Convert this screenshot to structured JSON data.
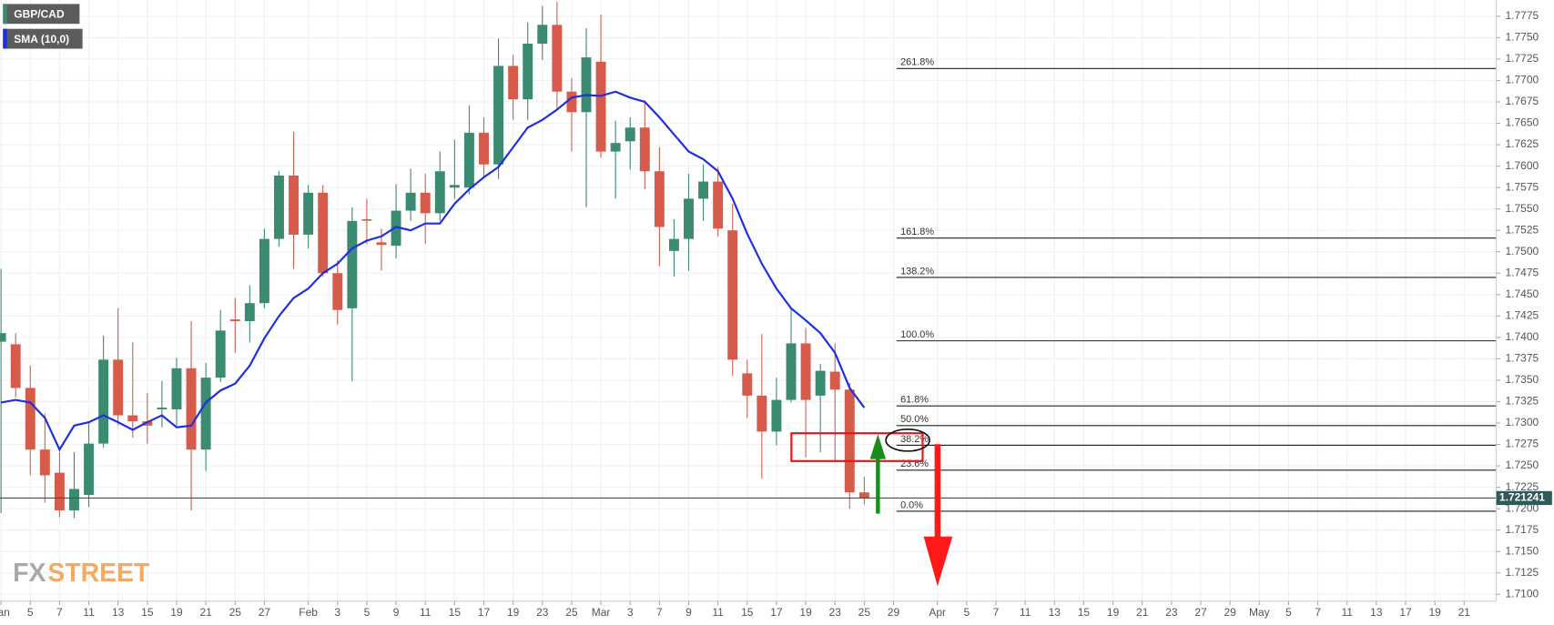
{
  "chart_data": {
    "type": "candlestick",
    "xlim": [
      -0.07,
      102.2
    ],
    "ylim": [
      1.7092,
      1.7794
    ],
    "grid": true,
    "xticks": [
      {
        "value": 0,
        "label": "Jan"
      },
      {
        "value": 2,
        "label": "5"
      },
      {
        "value": 4,
        "label": "7"
      },
      {
        "value": 6,
        "label": "11"
      },
      {
        "value": 8,
        "label": "13"
      },
      {
        "value": 10,
        "label": "15"
      },
      {
        "value": 12,
        "label": "19"
      },
      {
        "value": 14,
        "label": "21"
      },
      {
        "value": 16,
        "label": "25"
      },
      {
        "value": 18,
        "label": "27"
      },
      {
        "value": 21,
        "label": "Feb"
      },
      {
        "value": 23,
        "label": "3"
      },
      {
        "value": 25,
        "label": "5"
      },
      {
        "value": 27,
        "label": "9"
      },
      {
        "value": 29,
        "label": "11"
      },
      {
        "value": 31,
        "label": "15"
      },
      {
        "value": 33,
        "label": "17"
      },
      {
        "value": 35,
        "label": "19"
      },
      {
        "value": 37,
        "label": "23"
      },
      {
        "value": 39,
        "label": "25"
      },
      {
        "value": 41,
        "label": "Mar"
      },
      {
        "value": 43,
        "label": "3"
      },
      {
        "value": 45,
        "label": "7"
      },
      {
        "value": 47,
        "label": "9"
      },
      {
        "value": 49,
        "label": "11"
      },
      {
        "value": 51,
        "label": "15"
      },
      {
        "value": 53,
        "label": "17"
      },
      {
        "value": 55,
        "label": "19"
      },
      {
        "value": 57,
        "label": "23"
      },
      {
        "value": 59,
        "label": "25"
      },
      {
        "value": 61,
        "label": "29"
      },
      {
        "value": 64,
        "label": "Apr"
      },
      {
        "value": 66,
        "label": "5"
      },
      {
        "value": 68,
        "label": "7"
      },
      {
        "value": 70,
        "label": "11"
      },
      {
        "value": 72,
        "label": "13"
      },
      {
        "value": 74,
        "label": "15"
      },
      {
        "value": 76,
        "label": "19"
      },
      {
        "value": 78,
        "label": "21"
      },
      {
        "value": 80,
        "label": "23"
      },
      {
        "value": 82,
        "label": "27"
      },
      {
        "value": 84,
        "label": "29"
      },
      {
        "value": 86,
        "label": "May"
      },
      {
        "value": 88,
        "label": "5"
      },
      {
        "value": 90,
        "label": "7"
      },
      {
        "value": 92,
        "label": "11"
      },
      {
        "value": 94,
        "label": "13"
      },
      {
        "value": 96,
        "label": "17"
      },
      {
        "value": 98,
        "label": "19"
      },
      {
        "value": 100,
        "label": "21"
      }
    ],
    "yticks": [
      {
        "value": 1.71,
        "label": "1.7100"
      },
      1.7125,
      {
        "value": 1.715,
        "label": "1.7150"
      },
      1.7175,
      {
        "value": 1.72,
        "label": "1.7200"
      },
      1.7225,
      {
        "value": 1.725,
        "label": "1.7250"
      },
      1.7275,
      {
        "value": 1.73,
        "label": "1.7300"
      },
      1.7325,
      {
        "value": 1.735,
        "label": "1.7350"
      },
      1.7375,
      {
        "value": 1.74,
        "label": "1.7400"
      },
      1.7425,
      {
        "value": 1.745,
        "label": "1.7450"
      },
      1.7475,
      {
        "value": 1.75,
        "label": "1.7500"
      },
      1.7525,
      {
        "value": 1.755,
        "label": "1.7550"
      },
      1.7575,
      {
        "value": 1.76,
        "label": "1.7600"
      },
      1.7625,
      {
        "value": 1.765,
        "label": "1.7650"
      },
      1.7675,
      {
        "value": 1.77,
        "label": "1.7700"
      },
      1.7725,
      {
        "value": 1.775,
        "label": "1.7750"
      },
      1.7775
    ],
    "series": [
      {
        "name": "GBP/CAD",
        "type": "candlestick",
        "color": "#3b8a72",
        "up_color": "#3b8a72",
        "down_color": "#d65b4a",
        "x": [
          0,
          1,
          2,
          3,
          4,
          5,
          6,
          7,
          8,
          9,
          10,
          11,
          12,
          13,
          14,
          15,
          16,
          17,
          18,
          19,
          20,
          21,
          22,
          23,
          24,
          25,
          26,
          27,
          28,
          29,
          30,
          31,
          32,
          33,
          34,
          35,
          36,
          37,
          38,
          39,
          40,
          41,
          42,
          43,
          44,
          45,
          46,
          47,
          48,
          49,
          50,
          51,
          52,
          53,
          54,
          55,
          56,
          57,
          58,
          59
        ],
        "open": [
          1.7395,
          1.7392,
          1.7341,
          1.7269,
          1.7242,
          1.7198,
          1.7216,
          1.7276,
          1.7374,
          1.7309,
          1.7302,
          1.7316,
          1.7316,
          1.7364,
          1.7269,
          1.7353,
          1.7421,
          1.7419,
          1.744,
          1.7515,
          1.7589,
          1.752,
          1.7569,
          1.7475,
          1.7434,
          1.7538,
          1.7511,
          1.7507,
          1.7548,
          1.7569,
          1.7545,
          1.7575,
          1.7575,
          1.7639,
          1.7602,
          1.7717,
          1.7678,
          1.7743,
          1.7765,
          1.7687,
          1.7663,
          1.7722,
          1.7617,
          1.7629,
          1.7645,
          1.7594,
          1.7501,
          1.7515,
          1.7562,
          1.7582,
          1.7525,
          1.7358,
          1.7332,
          1.729,
          1.7327,
          1.7393,
          1.7332,
          1.736,
          1.7339,
          1.7219
        ],
        "high": [
          1.748,
          1.7405,
          1.7367,
          1.7311,
          1.7266,
          1.7266,
          1.7301,
          1.7402,
          1.7434,
          1.7394,
          1.7335,
          1.7349,
          1.7376,
          1.7419,
          1.737,
          1.7432,
          1.7446,
          1.7461,
          1.7527,
          1.7594,
          1.764,
          1.7578,
          1.7578,
          1.749,
          1.7552,
          1.7562,
          1.7527,
          1.7579,
          1.7597,
          1.7591,
          1.7617,
          1.7631,
          1.7671,
          1.7657,
          1.7749,
          1.773,
          1.7768,
          1.7787,
          1.7792,
          1.7703,
          1.7761,
          1.7777,
          1.7653,
          1.7657,
          1.7677,
          1.7622,
          1.7538,
          1.7591,
          1.7602,
          1.7599,
          1.7556,
          1.7374,
          1.7404,
          1.7353,
          1.7434,
          1.7411,
          1.7369,
          1.7393,
          1.7347,
          1.7237
        ],
        "low": [
          1.7195,
          1.733,
          1.7239,
          1.7207,
          1.719,
          1.7189,
          1.7202,
          1.7271,
          1.7297,
          1.7283,
          1.7276,
          1.7295,
          1.7297,
          1.7198,
          1.7244,
          1.7348,
          1.7382,
          1.7394,
          1.7434,
          1.7506,
          1.748,
          1.7504,
          1.7471,
          1.7415,
          1.7349,
          1.7509,
          1.7478,
          1.7492,
          1.7536,
          1.7509,
          1.7536,
          1.7562,
          1.7567,
          1.7587,
          1.7585,
          1.7654,
          1.7654,
          1.7724,
          1.7668,
          1.7617,
          1.7552,
          1.761,
          1.7562,
          1.7596,
          1.7573,
          1.7483,
          1.7471,
          1.7478,
          1.7536,
          1.7518,
          1.7355,
          1.7306,
          1.7235,
          1.7274,
          1.7324,
          1.726,
          1.7266,
          1.7254,
          1.72,
          1.7205
        ],
        "close": [
          1.7405,
          1.7341,
          1.7269,
          1.7239,
          1.7198,
          1.7223,
          1.7276,
          1.7374,
          1.7309,
          1.7302,
          1.7297,
          1.7318,
          1.7364,
          1.7269,
          1.7353,
          1.7408,
          1.7419,
          1.744,
          1.7515,
          1.7589,
          1.752,
          1.7569,
          1.7475,
          1.7432,
          1.7536,
          1.7537,
          1.7508,
          1.7548,
          1.7569,
          1.7545,
          1.7594,
          1.7578,
          1.7639,
          1.7602,
          1.7717,
          1.7678,
          1.7743,
          1.7765,
          1.7687,
          1.7663,
          1.7727,
          1.7617,
          1.7627,
          1.7645,
          1.7594,
          1.7529,
          1.7515,
          1.7562,
          1.7582,
          1.7527,
          1.7374,
          1.7332,
          1.729,
          1.7327,
          1.7393,
          1.7327,
          1.7361,
          1.7339,
          1.7219,
          1.7212
        ]
      },
      {
        "name": "SMA (10,0)",
        "type": "line",
        "color": "#1f2fe0",
        "x": [
          0,
          1,
          2,
          3,
          4,
          5,
          6,
          7,
          8,
          9,
          10,
          11,
          12,
          13,
          14,
          15,
          16,
          17,
          18,
          19,
          20,
          21,
          22,
          23,
          24,
          25,
          26,
          27,
          28,
          29,
          30,
          31,
          32,
          33,
          34,
          35,
          36,
          37,
          38,
          39,
          40,
          41,
          42,
          43,
          44,
          45,
          46,
          47,
          48,
          49,
          50,
          51,
          52,
          53,
          54,
          55,
          56,
          57,
          58,
          59
        ],
        "values": [
          1.7324,
          1.7327,
          1.7324,
          1.7306,
          1.7269,
          1.7297,
          1.7301,
          1.7309,
          1.7301,
          1.7292,
          1.7301,
          1.7309,
          1.7295,
          1.7297,
          1.7324,
          1.7338,
          1.7346,
          1.7367,
          1.7399,
          1.7425,
          1.7446,
          1.7457,
          1.7475,
          1.7486,
          1.7504,
          1.7513,
          1.7518,
          1.7529,
          1.7525,
          1.7533,
          1.7533,
          1.7556,
          1.7573,
          1.7587,
          1.7599,
          1.7622,
          1.7645,
          1.7654,
          1.7666,
          1.768,
          1.7683,
          1.7682,
          1.7687,
          1.768,
          1.7675,
          1.7657,
          1.7637,
          1.7617,
          1.7608,
          1.7594,
          1.7562,
          1.7521,
          1.7486,
          1.7457,
          1.7434,
          1.742,
          1.7405,
          1.7382,
          1.7341,
          1.7318
        ]
      }
    ],
    "fib_levels": [
      {
        "value": 1.7714,
        "label": "261.8%"
      },
      {
        "value": 1.7516,
        "label": "161.8%"
      },
      {
        "value": 1.747,
        "label": "138.2%"
      },
      {
        "value": 1.7396,
        "label": "100.0%"
      },
      {
        "value": 1.732,
        "label": "61.8%"
      },
      {
        "value": 1.7297,
        "label": "50.0%"
      },
      {
        "value": 1.7274,
        "label": "38.2%"
      },
      {
        "value": 1.7245,
        "label": "23.6%"
      },
      {
        "value": 1.7197,
        "label": "0.0%"
      }
    ],
    "fib_start_x": 61.2,
    "last_price": 1.721241,
    "watermark": {
      "prefix": "FX",
      "suffix": "STREET"
    }
  }
}
